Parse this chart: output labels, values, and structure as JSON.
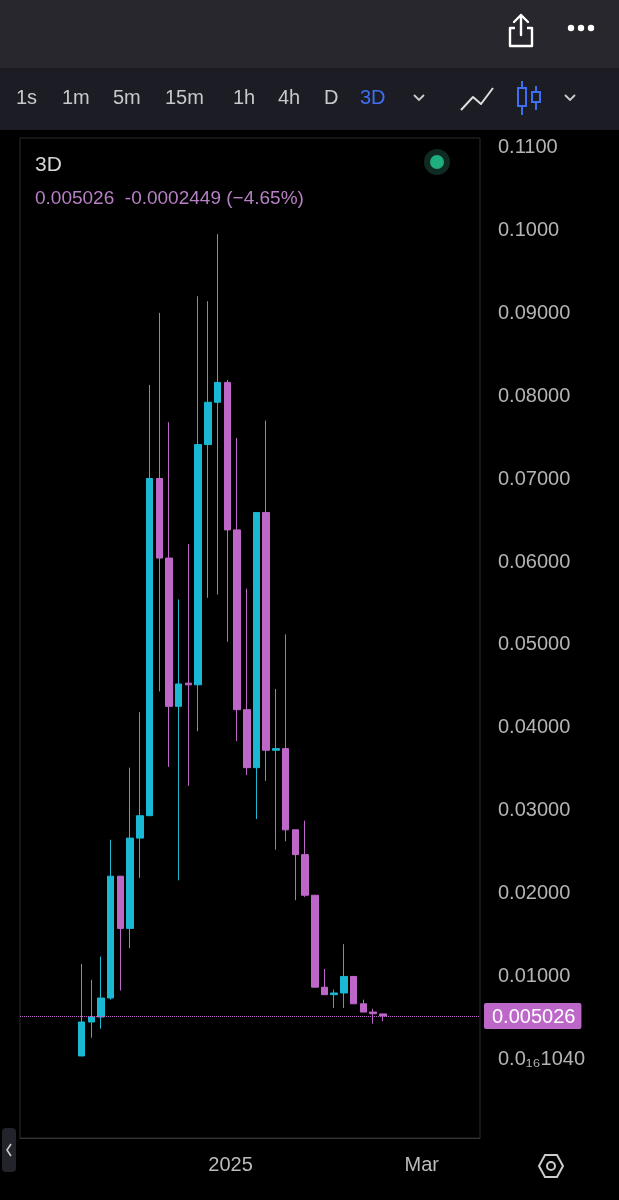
{
  "chart_data": {
    "type": "candlestick",
    "title": "3D",
    "subtitle": "0.005026  -0.0002449 (−4.65%)",
    "annotations": [
      "1s",
      "1m",
      "5m",
      "15m",
      "1h",
      "4h",
      "D",
      "3D"
    ],
    "x": [
      "2024-11-16",
      "2024-11-19",
      "2024-11-22",
      "2024-11-25",
      "2024-11-28",
      "2024-12-01",
      "2024-12-04",
      "2024-12-07",
      "2024-12-10",
      "2024-12-13",
      "2024-12-16",
      "2024-12-19",
      "2024-12-22",
      "2024-12-25",
      "2024-12-28",
      "2024-12-31",
      "2025-01-03",
      "2025-01-06",
      "2025-01-09",
      "2025-01-12",
      "2025-01-15",
      "2025-01-18",
      "2025-01-21",
      "2025-01-24",
      "2025-01-27",
      "2025-01-30",
      "2025-02-02",
      "2025-02-05",
      "2025-02-08",
      "2025-02-11",
      "2025-02-14",
      "2025-02-17"
    ],
    "ohlc": [
      [
        0.0002,
        0.0113,
        0.0002,
        0.0043
      ],
      [
        0.0043,
        0.0094,
        0.0024,
        0.0049
      ],
      [
        0.0049,
        0.0122,
        0.0035,
        0.0072
      ],
      [
        0.0072,
        0.0263,
        0.007,
        0.0219
      ],
      [
        0.0219,
        0.0219,
        0.0081,
        0.0156
      ],
      [
        0.0156,
        0.035,
        0.0132,
        0.0265
      ],
      [
        0.0265,
        0.0417,
        0.0217,
        0.0292
      ],
      [
        0.0292,
        0.0812,
        0.0292,
        0.0699
      ],
      [
        0.0699,
        0.0899,
        0.0442,
        0.0603
      ],
      [
        0.0603,
        0.0767,
        0.0351,
        0.0424
      ],
      [
        0.0424,
        0.0553,
        0.0214,
        0.0451
      ],
      [
        0.0452,
        0.062,
        0.0328,
        0.045
      ],
      [
        0.045,
        0.0919,
        0.0394,
        0.074
      ],
      [
        0.074,
        0.0913,
        0.0555,
        0.0791
      ],
      [
        0.0791,
        0.0994,
        0.0559,
        0.0815
      ],
      [
        0.0815,
        0.0818,
        0.0502,
        0.0637
      ],
      [
        0.0637,
        0.0748,
        0.0382,
        0.042
      ],
      [
        0.042,
        0.0566,
        0.0341,
        0.035
      ],
      [
        0.035,
        0.0658,
        0.0288,
        0.0658
      ],
      [
        0.0658,
        0.0769,
        0.0334,
        0.0371
      ],
      [
        0.0371,
        0.0445,
        0.0251,
        0.0373
      ],
      [
        0.0373,
        0.0511,
        0.0261,
        0.0275
      ],
      [
        0.0275,
        0.0275,
        0.019,
        0.0245
      ],
      [
        0.0245,
        0.0286,
        0.0194,
        0.0196
      ],
      [
        0.0196,
        0.0196,
        0.0085,
        0.0085
      ],
      [
        0.0085,
        0.0107,
        0.0076,
        0.0076
      ],
      [
        0.0076,
        0.0082,
        0.006,
        0.0078
      ],
      [
        0.0078,
        0.0137,
        0.006,
        0.0098
      ],
      [
        0.0098,
        0.0098,
        0.0065,
        0.0065
      ],
      [
        0.0065,
        0.007,
        0.0055,
        0.0055
      ],
      [
        0.0055,
        0.0059,
        0.0041,
        0.0053
      ],
      [
        0.005271,
        0.0053,
        0.0044,
        0.005026
      ]
    ],
    "colors": [
      "#1ab8d2",
      "#1ab8d2",
      "#1ab8d2",
      "#1ab8d2",
      "#bd68c9",
      "#1ab8d2",
      "#1ab8d2",
      "#1ab8d2",
      "#bd68c9",
      "#bd68c9",
      "#1ab8d2",
      "#bd68c9",
      "#1ab8d2",
      "#1ab8d2",
      "#1ab8d2",
      "#bd68c9",
      "#bd68c9",
      "#bd68c9",
      "#1ab8d2",
      "#bd68c9",
      "#1ab8d2",
      "#bd68c9",
      "#bd68c9",
      "#bd68c9",
      "#bd68c9",
      "#bd68c9",
      "#1ab8d2",
      "#1ab8d2",
      "#bd68c9",
      "#bd68c9",
      "#bd68c9",
      "#bd68c9"
    ],
    "xlim": [
      "2024-10-28",
      "2025-03-19"
    ],
    "xticks": [
      {
        "value": "2025-01-01",
        "label": "2025"
      },
      {
        "value": "2025-03-01",
        "label": "Mar"
      }
    ],
    "ylim": [
      -0.0097,
      0.111
    ],
    "yticks": [
      {
        "value": 0,
        "label": "0.0₁₆1040"
      },
      {
        "value": 0.01,
        "label": "0.01000"
      },
      {
        "value": 0.02,
        "label": "0.02000"
      },
      {
        "value": 0.03,
        "label": "0.03000"
      },
      {
        "value": 0.04,
        "label": "0.04000"
      },
      {
        "value": 0.05,
        "label": "0.05000"
      },
      {
        "value": 0.06,
        "label": "0.06000"
      },
      {
        "value": 0.07,
        "label": "0.07000"
      },
      {
        "value": 0.08,
        "label": "0.08000"
      },
      {
        "value": 0.09,
        "label": "0.09000"
      },
      {
        "value": 0.1,
        "label": "0.1000"
      },
      {
        "value": 0.11,
        "label": "0.1100"
      }
    ],
    "ref_lines": [
      {
        "axis": "y",
        "value": 0.005026,
        "label": "0.005026",
        "color": "#bd68c9",
        "line_style": "dotted"
      }
    ],
    "grid": false
  }
}
